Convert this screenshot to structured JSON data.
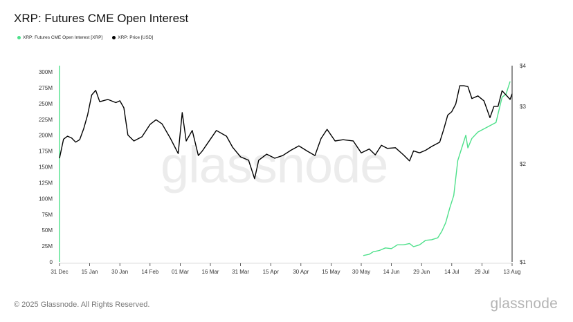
{
  "title": "XRP: Futures CME Open Interest",
  "footer": "© 2025 Glassnode. All Rights Reserved.",
  "brand": "glassnode",
  "watermark": "glassnode",
  "chart_data": {
    "type": "line",
    "x_ticks": [
      "31 Dec",
      "15 Jan",
      "30 Jan",
      "14 Feb",
      "01 Mar",
      "16 Mar",
      "31 Mar",
      "15 Apr",
      "30 Apr",
      "15 May",
      "30 May",
      "14 Jun",
      "29 Jun",
      "14 Jul",
      "29 Jul",
      "13 Aug"
    ],
    "x_start": "2024-12-31",
    "left_axis": {
      "ticks": [
        "0",
        "25M",
        "50M",
        "75M",
        "100M",
        "125M",
        "150M",
        "175M",
        "200M",
        "225M",
        "250M",
        "275M",
        "300M"
      ],
      "ylim": [
        0,
        300000000
      ]
    },
    "right_axis": {
      "ticks": [
        "$1",
        "$2",
        "$3",
        "$4"
      ],
      "scale": "log",
      "ylim": [
        1,
        4
      ]
    },
    "grid": false,
    "legend_position": "top-left",
    "series": [
      {
        "name": "XRP: Futures CME Open Interest [XRP]",
        "color": "#4de08a",
        "axis": "left",
        "points": [
          [
            "2025-05-31",
            10000000
          ],
          [
            "2025-06-03",
            12000000
          ],
          [
            "2025-06-05",
            16000000
          ],
          [
            "2025-06-08",
            18000000
          ],
          [
            "2025-06-11",
            22000000
          ],
          [
            "2025-06-14",
            21000000
          ],
          [
            "2025-06-17",
            27000000
          ],
          [
            "2025-06-20",
            27000000
          ],
          [
            "2025-06-23",
            29000000
          ],
          [
            "2025-06-25",
            24000000
          ],
          [
            "2025-06-28",
            27000000
          ],
          [
            "2025-07-01",
            34000000
          ],
          [
            "2025-07-04",
            35000000
          ],
          [
            "2025-07-07",
            38000000
          ],
          [
            "2025-07-09",
            48000000
          ],
          [
            "2025-07-11",
            62000000
          ],
          [
            "2025-07-13",
            85000000
          ],
          [
            "2025-07-15",
            105000000
          ],
          [
            "2025-07-17",
            160000000
          ],
          [
            "2025-07-19",
            180000000
          ],
          [
            "2025-07-21",
            200000000
          ],
          [
            "2025-07-22",
            180000000
          ],
          [
            "2025-07-24",
            195000000
          ],
          [
            "2025-07-27",
            205000000
          ],
          [
            "2025-07-30",
            210000000
          ],
          [
            "2025-08-02",
            215000000
          ],
          [
            "2025-08-05",
            220000000
          ],
          [
            "2025-08-08",
            260000000
          ],
          [
            "2025-08-10",
            265000000
          ],
          [
            "2025-08-12",
            285000000
          ]
        ]
      },
      {
        "name": "XRP: Price [USD]",
        "color": "#000000",
        "axis": "right",
        "points": [
          [
            "2024-12-31",
            2.08
          ],
          [
            "2025-01-02",
            2.38
          ],
          [
            "2025-01-04",
            2.43
          ],
          [
            "2025-01-06",
            2.4
          ],
          [
            "2025-01-08",
            2.33
          ],
          [
            "2025-01-10",
            2.37
          ],
          [
            "2025-01-12",
            2.56
          ],
          [
            "2025-01-14",
            2.83
          ],
          [
            "2025-01-16",
            3.25
          ],
          [
            "2025-01-18",
            3.36
          ],
          [
            "2025-01-20",
            3.1
          ],
          [
            "2025-01-24",
            3.15
          ],
          [
            "2025-01-28",
            3.08
          ],
          [
            "2025-01-30",
            3.12
          ],
          [
            "2025-02-01",
            2.97
          ],
          [
            "2025-02-03",
            2.45
          ],
          [
            "2025-02-06",
            2.35
          ],
          [
            "2025-02-10",
            2.42
          ],
          [
            "2025-02-14",
            2.64
          ],
          [
            "2025-02-17",
            2.73
          ],
          [
            "2025-02-20",
            2.65
          ],
          [
            "2025-02-24",
            2.4
          ],
          [
            "2025-02-28",
            2.15
          ],
          [
            "2025-03-02",
            2.87
          ],
          [
            "2025-03-04",
            2.35
          ],
          [
            "2025-03-07",
            2.53
          ],
          [
            "2025-03-10",
            2.12
          ],
          [
            "2025-03-12",
            2.19
          ],
          [
            "2025-03-15",
            2.33
          ],
          [
            "2025-03-19",
            2.53
          ],
          [
            "2025-03-24",
            2.43
          ],
          [
            "2025-03-27",
            2.25
          ],
          [
            "2025-03-31",
            2.1
          ],
          [
            "2025-04-04",
            2.05
          ],
          [
            "2025-04-07",
            1.8
          ],
          [
            "2025-04-09",
            2.05
          ],
          [
            "2025-04-13",
            2.14
          ],
          [
            "2025-04-17",
            2.08
          ],
          [
            "2025-04-21",
            2.12
          ],
          [
            "2025-04-25",
            2.2
          ],
          [
            "2025-04-29",
            2.27
          ],
          [
            "2025-05-03",
            2.19
          ],
          [
            "2025-05-07",
            2.12
          ],
          [
            "2025-05-10",
            2.39
          ],
          [
            "2025-05-13",
            2.55
          ],
          [
            "2025-05-17",
            2.35
          ],
          [
            "2025-05-21",
            2.37
          ],
          [
            "2025-05-26",
            2.35
          ],
          [
            "2025-05-30",
            2.16
          ],
          [
            "2025-06-03",
            2.22
          ],
          [
            "2025-06-06",
            2.13
          ],
          [
            "2025-06-09",
            2.28
          ],
          [
            "2025-06-12",
            2.23
          ],
          [
            "2025-06-16",
            2.24
          ],
          [
            "2025-06-20",
            2.13
          ],
          [
            "2025-06-23",
            2.04
          ],
          [
            "2025-06-25",
            2.19
          ],
          [
            "2025-06-28",
            2.16
          ],
          [
            "2025-07-01",
            2.2
          ],
          [
            "2025-07-04",
            2.26
          ],
          [
            "2025-07-08",
            2.33
          ],
          [
            "2025-07-10",
            2.55
          ],
          [
            "2025-07-12",
            2.82
          ],
          [
            "2025-07-14",
            2.89
          ],
          [
            "2025-07-16",
            3.05
          ],
          [
            "2025-07-18",
            3.47
          ],
          [
            "2025-07-20",
            3.47
          ],
          [
            "2025-07-22",
            3.45
          ],
          [
            "2025-07-24",
            3.17
          ],
          [
            "2025-07-27",
            3.23
          ],
          [
            "2025-07-30",
            3.12
          ],
          [
            "2025-08-02",
            2.77
          ],
          [
            "2025-08-04",
            3.0
          ],
          [
            "2025-08-06",
            3.0
          ],
          [
            "2025-08-08",
            3.35
          ],
          [
            "2025-08-10",
            3.25
          ],
          [
            "2025-08-12",
            3.15
          ],
          [
            "2025-08-13",
            3.28
          ]
        ]
      }
    ]
  }
}
